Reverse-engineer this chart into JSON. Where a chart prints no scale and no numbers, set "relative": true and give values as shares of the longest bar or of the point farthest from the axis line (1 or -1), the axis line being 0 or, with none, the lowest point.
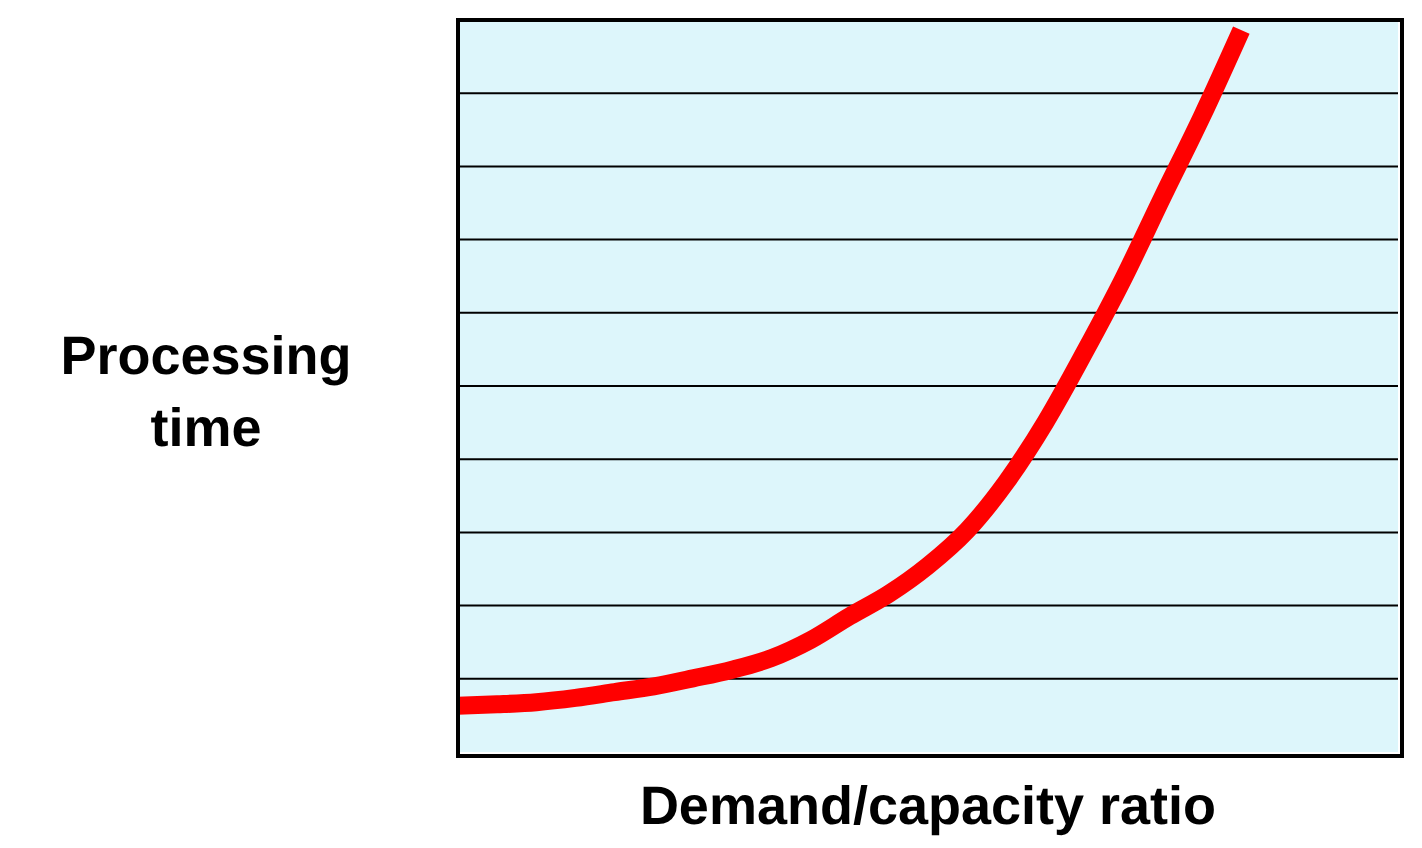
{
  "chart_data": {
    "type": "line",
    "relative": true,
    "xlabel": "Demand/capacity ratio",
    "ylabel": "Processing time",
    "grid": "y",
    "marker": "none",
    "line_style": "solid",
    "categories": [
      null,
      null,
      null,
      null,
      null,
      null,
      null,
      null,
      null,
      null,
      null,
      null,
      null,
      null,
      null,
      null,
      null,
      null,
      null,
      null,
      null,
      null,
      null,
      null,
      null
    ],
    "series": [
      {
        "color": "#ff0000",
        "values": [
          0.064,
          0.066,
          0.069,
          0.075,
          0.083,
          0.091,
          0.102,
          0.114,
          0.13,
          0.155,
          0.188,
          0.219,
          0.258,
          0.307,
          0.374,
          0.457,
          0.554,
          0.657,
          0.77,
          0.881,
          1,
          null,
          null,
          null,
          null
        ]
      }
    ]
  }
}
